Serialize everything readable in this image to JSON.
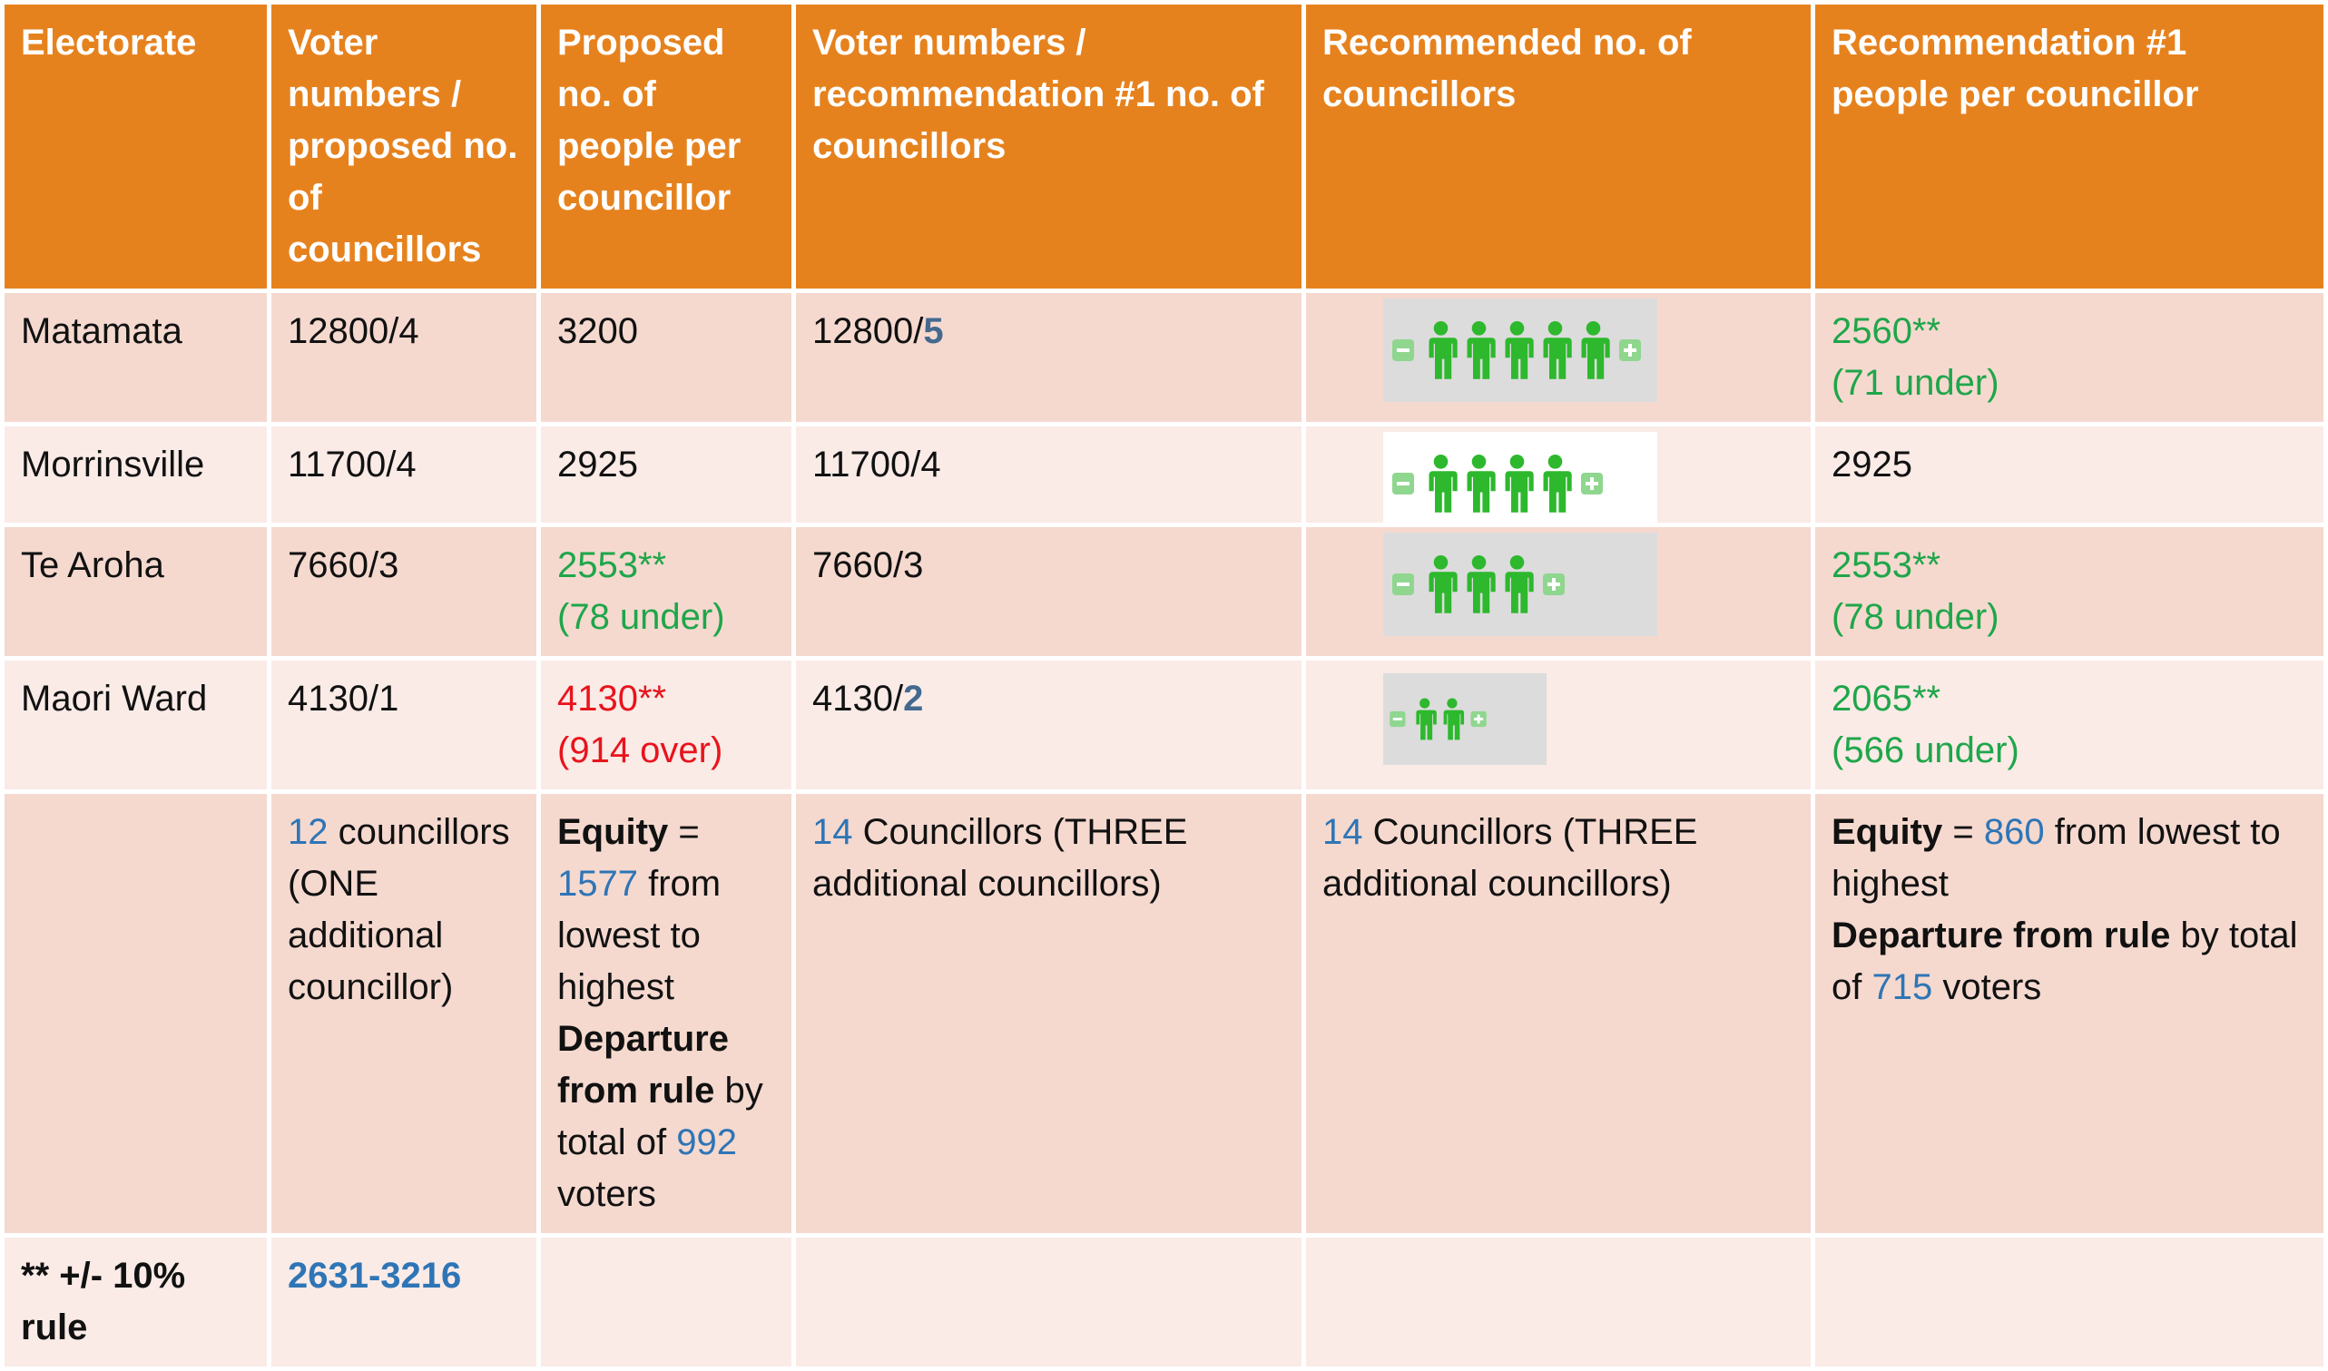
{
  "header": [
    "Electorate",
    "Voter numbers / proposed no. of councillors",
    "Proposed no. of people per councillor",
    "Voter numbers / recommendation #1   no. of councillors",
    "Recommended no. of councillors",
    "Recommendation #1 people per councillor"
  ],
  "rows": [
    {
      "cells": [
        [
          [
            {
              "text": "Matamata"
            }
          ]
        ],
        [
          [
            {
              "text": "12800/4"
            }
          ]
        ],
        [
          [
            {
              "text": "3200"
            }
          ]
        ],
        [
          [
            {
              "text": "12800/"
            },
            {
              "text": "5",
              "color": "#44698f",
              "bold": true
            }
          ]
        ],
        [],
        [
          [
            {
              "text": "2560**",
              "color": "#1fa64a"
            }
          ],
          [
            {
              "text": "(71 under)",
              "color": "#1fa64a"
            }
          ]
        ]
      ],
      "icons": 5,
      "icon_bg": "#dcdcdc"
    },
    {
      "cells": [
        [
          [
            {
              "text": "Morrinsville"
            }
          ]
        ],
        [
          [
            {
              "text": "11700/4"
            }
          ]
        ],
        [
          [
            {
              "text": "2925"
            }
          ]
        ],
        [
          [
            {
              "text": "11700/4"
            }
          ]
        ],
        [],
        [
          [
            {
              "text": "2925"
            }
          ]
        ]
      ],
      "icons": 4,
      "icon_bg": "#ffffff"
    },
    {
      "cells": [
        [
          [
            {
              "text": "Te Aroha"
            }
          ]
        ],
        [
          [
            {
              "text": "7660/3"
            }
          ]
        ],
        [
          [
            {
              "text": "2553**",
              "color": "#1fa64a"
            }
          ],
          [
            {
              "text": "(78 under)",
              "color": "#1fa64a"
            }
          ]
        ],
        [
          [
            {
              "text": "7660/3"
            }
          ]
        ],
        [],
        [
          [
            {
              "text": "2553**",
              "color": "#1fa64a"
            }
          ],
          [
            {
              "text": "(78 under)",
              "color": "#1fa64a"
            }
          ]
        ]
      ],
      "icons": 3,
      "icon_bg": "#dcdcdc"
    },
    {
      "cells": [
        [
          [
            {
              "text": "Maori Ward"
            }
          ]
        ],
        [
          [
            {
              "text": "4130/1"
            }
          ]
        ],
        [
          [
            {
              "text": "4130**",
              "color": "#e8141c"
            }
          ],
          [
            {
              "text": "(914 over)",
              "color": "#e8141c"
            }
          ]
        ],
        [
          [
            {
              "text": "4130/"
            },
            {
              "text": "2",
              "color": "#44698f",
              "bold": true
            }
          ]
        ],
        [],
        [
          [
            {
              "text": "2065**",
              "color": "#1fa64a"
            }
          ],
          [
            {
              "text": "(566 under)",
              "color": "#1fa64a"
            }
          ]
        ]
      ],
      "icons": 2,
      "icon_bg": "#dcdcdc"
    },
    {
      "cells": [
        [],
        [
          [
            {
              "text": "12",
              "color": "#2e75b6"
            },
            {
              "text": " councillors (ONE additional councillor)"
            }
          ]
        ],
        [
          [
            {
              "text": "Equity",
              "bold": true
            },
            {
              "text": " = "
            },
            {
              "text": "1577",
              "color": "#2e75b6"
            },
            {
              "text": " from lowest to highest "
            },
            {
              "text": "Departure from rule",
              "bold": true
            },
            {
              "text": " by total of "
            },
            {
              "text": "992",
              "color": "#2e75b6"
            },
            {
              "text": " voters"
            }
          ]
        ],
        [
          [
            {
              "text": "14",
              "color": "#2e75b6"
            },
            {
              "text": " Councillors (THREE additional councillors)"
            }
          ]
        ],
        [
          [
            {
              "text": "14",
              "color": "#2e75b6"
            },
            {
              "text": " Councillors (THREE additional councillors)"
            }
          ]
        ],
        [
          [
            {
              "text": "Equity",
              "bold": true
            },
            {
              "text": " = "
            },
            {
              "text": "860",
              "color": "#2e75b6"
            },
            {
              "text": " from lowest to highest"
            }
          ],
          [
            {
              "text": "Departure from rule",
              "bold": true
            },
            {
              "text": " by total of "
            },
            {
              "text": "715",
              "color": "#2e75b6"
            },
            {
              "text": " voters"
            }
          ]
        ]
      ]
    },
    {
      "cells": [
        [
          [
            {
              "text": "** +/- 10% rule",
              "bold": true
            }
          ]
        ],
        [
          [
            {
              "text": "2631-3216",
              "color": "#2e75b6",
              "bold": true
            }
          ]
        ],
        [],
        [],
        [],
        []
      ]
    }
  ]
}
